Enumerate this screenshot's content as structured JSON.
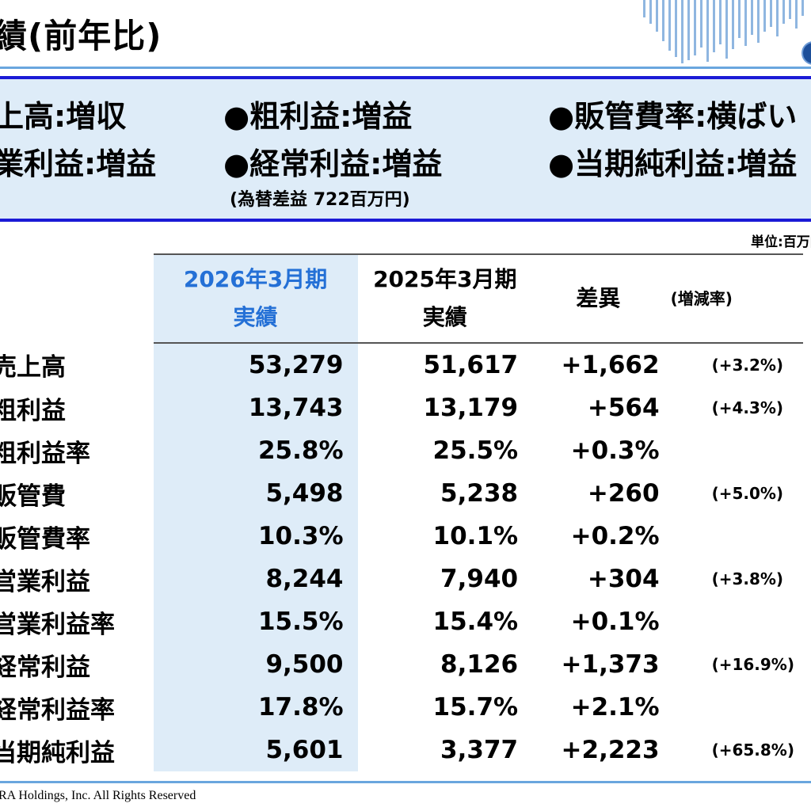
{
  "title": "績(前年比)",
  "summary": {
    "items": [
      "上高:増収",
      "●粗利益:増益",
      "●販管費率:横ばい",
      "業利益:増益",
      "●経常利益:増益",
      "●当期純利益:増益"
    ],
    "note": "(為替差益 722百万円)"
  },
  "unit": "単位:百万円",
  "table": {
    "headers": {
      "current_line1": "2026年3月期",
      "current_line2": "実績",
      "prior_line1": "2025年3月期",
      "prior_line2": "実績",
      "diff": "差異",
      "rate": "(増減率)"
    },
    "rows": [
      {
        "label": "売上高",
        "current": "53,279",
        "prior": "51,617",
        "diff": "+1,662",
        "rate": "(+3.2%)"
      },
      {
        "label": "粗利益",
        "current": "13,743",
        "prior": "13,179",
        "diff": "+564",
        "rate": "(+4.3%)"
      },
      {
        "label": "粗利益率",
        "current": "25.8%",
        "prior": "25.5%",
        "diff": "+0.3%",
        "rate": ""
      },
      {
        "label": "販管費",
        "current": "5,498",
        "prior": "5,238",
        "diff": "+260",
        "rate": "(+5.0%)"
      },
      {
        "label": "販管費率",
        "current": "10.3%",
        "prior": "10.1%",
        "diff": "+0.2%",
        "rate": ""
      },
      {
        "label": "営業利益",
        "current": "8,244",
        "prior": "7,940",
        "diff": "+304",
        "rate": "(+3.8%)"
      },
      {
        "label": "営業利益率",
        "current": "15.5%",
        "prior": "15.4%",
        "diff": "+0.1%",
        "rate": ""
      },
      {
        "label": "経常利益",
        "current": "9,500",
        "prior": "8,126",
        "diff": "+1,373",
        "rate": "(+16.9%)"
      },
      {
        "label": "経常利益率",
        "current": "17.8%",
        "prior": "15.7%",
        "diff": "+2.1%",
        "rate": ""
      },
      {
        "label": "当期純利益",
        "current": "5,601",
        "prior": "3,377",
        "diff": "+2,223",
        "rate": "(+65.8%)"
      }
    ]
  },
  "footer": {
    "copyright": "RA Holdings, Inc.  All Rights Reserved"
  },
  "colors": {
    "accent_blue": "#2470d6",
    "summary_fill": "#deecf8",
    "summary_border": "#1a1ad6",
    "rule_blue": "#6aa6de"
  }
}
